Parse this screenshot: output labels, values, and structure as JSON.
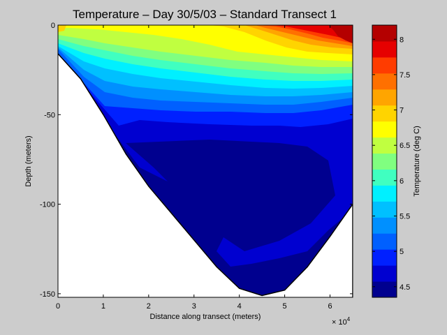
{
  "chart_data": {
    "type": "contour",
    "title": "Temperature – Day 30/5/03 – Standard Transect 1",
    "xlabel": "Distance along transect (meters)",
    "ylabel": "Depth (meters)",
    "x_exponent_label": "× 10",
    "x_exponent_power": "4",
    "xlim": [
      0,
      65000
    ],
    "ylim": [
      -152,
      0
    ],
    "x_tick_values": [
      0,
      10000,
      20000,
      30000,
      40000,
      50000,
      60000
    ],
    "x_tick_labels": [
      "0",
      "1",
      "2",
      "3",
      "4",
      "5",
      "6"
    ],
    "y_tick_values": [
      0,
      -50,
      -100,
      -150
    ],
    "y_tick_labels": [
      "0",
      "-50",
      "-100",
      "-150"
    ],
    "seafloor": {
      "x": [
        0,
        5000,
        10000,
        15000,
        20000,
        25000,
        30000,
        35000,
        40000,
        45000,
        50000,
        55000,
        60000,
        65000
      ],
      "depth": [
        -16,
        -30,
        -50,
        -72,
        -90,
        -105,
        -120,
        -135,
        -147,
        -151,
        -148,
        -135,
        -118,
        -100
      ]
    },
    "isotherm_levels": [
      6.5,
      6.0,
      5.5,
      5.0,
      4.5
    ],
    "isotherm_depth_at_x": [
      0,
      10000,
      20000,
      30000,
      40000,
      50000,
      60000,
      65000
    ],
    "isotherms": [
      {
        "level": 6.5,
        "depth": [
          -8,
          -11,
          -18,
          -22,
          -25,
          -28,
          -32,
          -35
        ]
      },
      {
        "level": 6.0,
        "depth": [
          -13,
          -18,
          -25,
          -29,
          -32,
          -36,
          -40,
          -43
        ]
      },
      {
        "level": 5.5,
        "depth": [
          -16,
          -27,
          -38,
          -43,
          -45,
          -48,
          -50,
          -52
        ]
      },
      {
        "level": 5.0,
        "depth": [
          -16,
          -42,
          -58,
          -60,
          -62,
          -64,
          -60,
          -57
        ]
      },
      {
        "level": 4.5,
        "depth": [
          -16,
          -50,
          -70,
          -72,
          -72,
          -72,
          -74,
          -84
        ]
      }
    ],
    "colorbar": {
      "label": "Temperature (deg C)",
      "range": [
        4.35,
        8.2
      ],
      "tick_values": [
        4.5,
        5,
        5.5,
        6,
        6.5,
        7,
        7.5,
        8
      ],
      "tick_labels": [
        "4.5",
        "5",
        "5.5",
        "6",
        "6.5",
        "7",
        "7.5",
        "8"
      ],
      "colors": [
        "#00008f",
        "#0000d0",
        "#0020ff",
        "#0060ff",
        "#0090ff",
        "#00c0ff",
        "#00f0ff",
        "#40ffc0",
        "#80ff80",
        "#c0ff40",
        "#ffff00",
        "#ffd400",
        "#ffa500",
        "#ff7000",
        "#ff3c00",
        "#e60000",
        "#b40000"
      ]
    }
  }
}
